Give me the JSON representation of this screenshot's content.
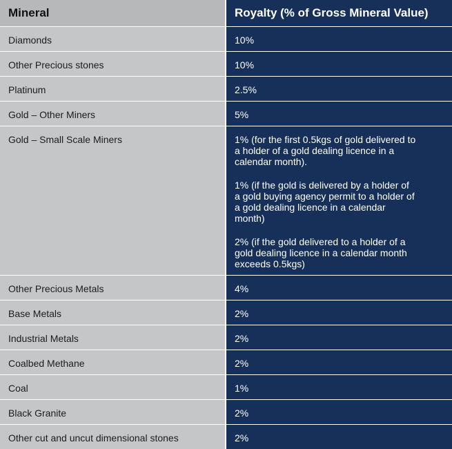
{
  "table": {
    "headers": {
      "mineral": "Mineral",
      "royalty": "Royalty (% of Gross Mineral Value)"
    },
    "rows": [
      {
        "mineral": "Diamonds",
        "royalty": [
          "10%"
        ]
      },
      {
        "mineral": "Other Precious stones",
        "royalty": [
          "10%"
        ]
      },
      {
        "mineral": "Platinum",
        "royalty": [
          "2.5%"
        ]
      },
      {
        "mineral": "Gold – Other Miners",
        "royalty": [
          "5%"
        ]
      },
      {
        "mineral": "Gold – Small Scale Miners",
        "royalty": [
          "1% (for the first 0.5kgs of gold delivered to a holder of a gold dealing licence in a calendar month).",
          "1% (if the gold is delivered by a holder of a gold buying agency permit to a holder of a gold dealing licence in a calendar month)",
          "2% (if the gold delivered to a holder of a gold dealing licence in a calendar month exceeds 0.5kgs)"
        ]
      },
      {
        "mineral": "Other Precious Metals",
        "royalty": [
          "4%"
        ]
      },
      {
        "mineral": "Base Metals",
        "royalty": [
          "2%"
        ]
      },
      {
        "mineral": "Industrial Metals",
        "royalty": [
          "2%"
        ]
      },
      {
        "mineral": "Coalbed Methane",
        "royalty": [
          "2%"
        ]
      },
      {
        "mineral": "Coal",
        "royalty": [
          "1%"
        ]
      },
      {
        "mineral": "Black Granite",
        "royalty": [
          "2%"
        ]
      },
      {
        "mineral": "Other cut and uncut dimensional stones",
        "royalty": [
          "2%"
        ]
      }
    ]
  },
  "colors": {
    "header_left_bg": "#b6b8ba",
    "cell_left_bg": "#c4c6c8",
    "navy": "#17305a"
  }
}
